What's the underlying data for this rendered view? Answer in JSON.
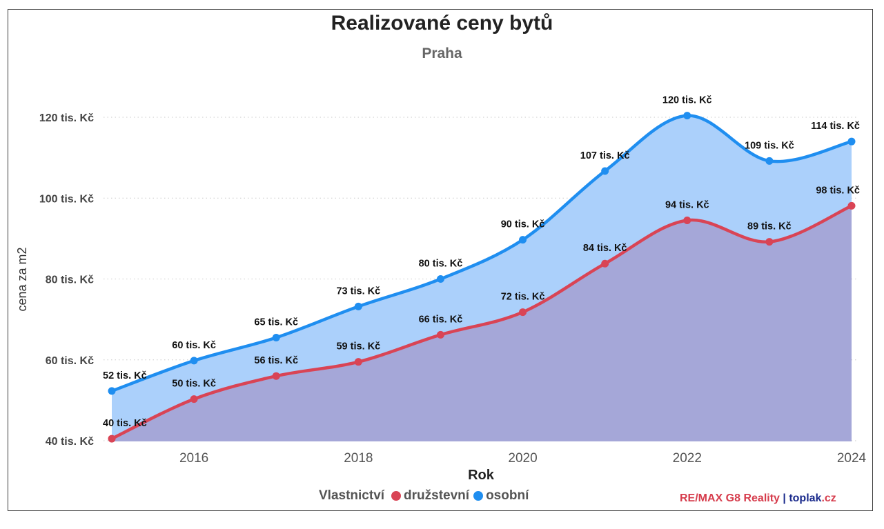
{
  "chart_data": {
    "type": "area",
    "title": "Realizované ceny bytů",
    "subtitle": "Praha",
    "xlabel": "Rok",
    "ylabel": "cena za m2",
    "x": [
      2015,
      2016,
      2017,
      2018,
      2019,
      2020,
      2021,
      2022,
      2023,
      2024
    ],
    "xlim": [
      2015,
      2024
    ],
    "ylim": [
      40,
      120
    ],
    "x_ticks": [
      "2016",
      "2018",
      "2020",
      "2022",
      "2024"
    ],
    "y_ticks": [
      "40 tis. Kč",
      "60 tis. Kč",
      "80 tis. Kč",
      "100 tis. Kč",
      "120 tis. Kč"
    ],
    "grid": true,
    "legend_title": "Vlastnictví",
    "legend_position": "bottom",
    "series": [
      {
        "name": "družstevní",
        "color": "#d94455",
        "fill": "#a5a7d8",
        "values": [
          40.5,
          50.3,
          56.0,
          59.5,
          66.2,
          71.8,
          83.8,
          94.5,
          89.2,
          98.1
        ],
        "labels": [
          "40 tis. Kč",
          "50 tis. Kč",
          "56 tis. Kč",
          "59 tis. Kč",
          "66 tis. Kč",
          "72 tis. Kč",
          "84 tis. Kč",
          "94 tis. Kč",
          "89 tis. Kč",
          "98 tis. Kč"
        ]
      },
      {
        "name": "osobní",
        "color": "#1f8ef0",
        "fill": "#abd0fb",
        "values": [
          52.3,
          59.8,
          65.5,
          73.2,
          80.0,
          89.7,
          106.7,
          120.4,
          109.2,
          114.0
        ],
        "labels": [
          "52 tis. Kč",
          "60 tis. Kč",
          "65 tis. Kč",
          "73 tis. Kč",
          "80 tis. Kč",
          "90 tis. Kč",
          "107 tis. Kč",
          "120 tis. Kč",
          "109 tis. Kč",
          "114 tis. Kč"
        ]
      }
    ]
  },
  "branding": {
    "part1": "RE/",
    "part2": "MAX G8 Reality",
    "separator": " | ",
    "part3": "toplak",
    "part4": ".cz"
  }
}
